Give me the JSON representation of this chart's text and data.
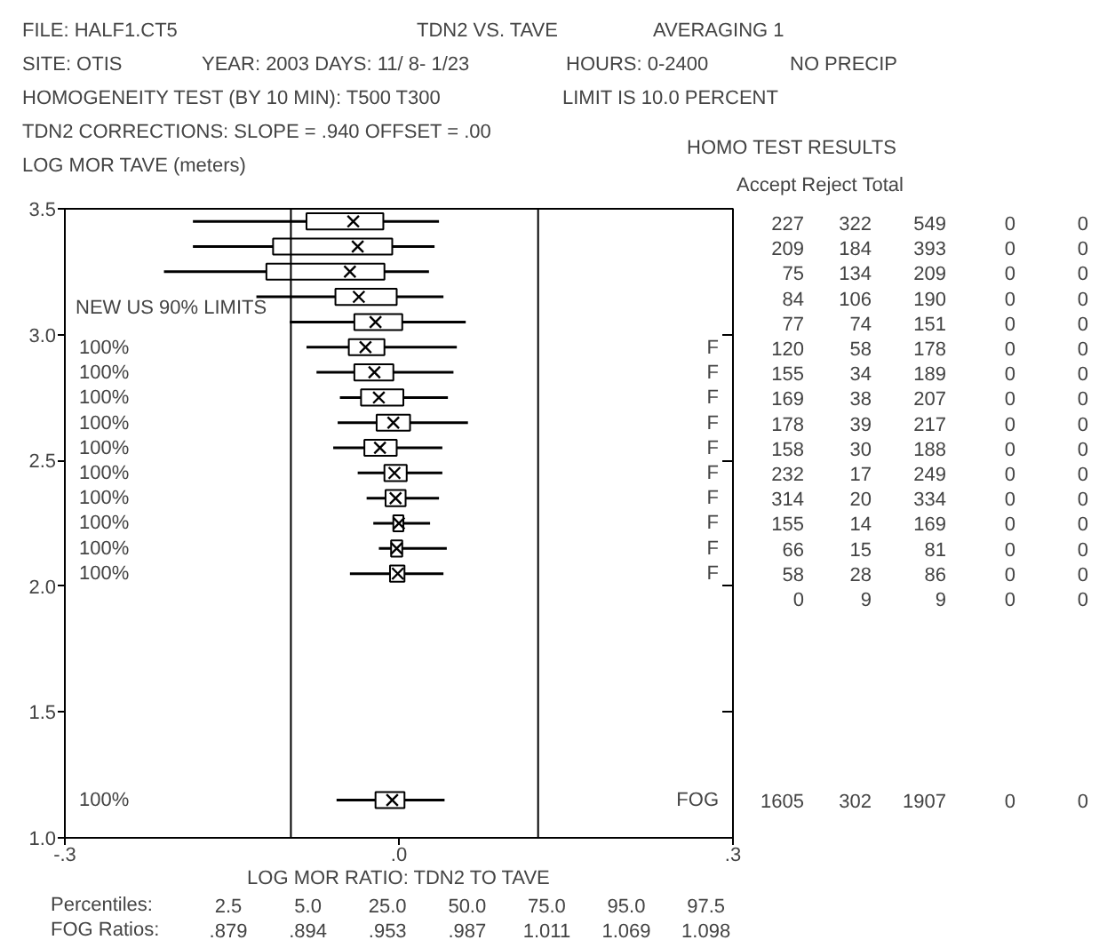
{
  "chart_data": {
    "type": "box",
    "orientation": "horizontal",
    "title": "TDN2 VS. TAVE",
    "xlabel": "LOG MOR RATIO: TDN2 TO TAVE",
    "ylabel": "LOG MOR TAVE (meters)",
    "xlim": [
      -0.3,
      0.3
    ],
    "ylim": [
      1.0,
      3.5
    ],
    "xticks": [
      {
        "value": -0.3,
        "label": "-.3"
      },
      {
        "value": 0,
        "label": ".0"
      },
      {
        "value": 0.3,
        "label": ".3"
      }
    ],
    "yticks": [
      {
        "value": 1.0,
        "label": "1.0"
      },
      {
        "value": 1.5,
        "label": "1.5"
      },
      {
        "value": 2.0,
        "label": "2.0"
      },
      {
        "value": 2.5,
        "label": "2.5"
      },
      {
        "value": 3.0,
        "label": "3.0"
      },
      {
        "value": 3.5,
        "label": "3.5"
      }
    ],
    "x": [
      3.45,
      3.35,
      3.25,
      3.15,
      3.05,
      2.95,
      2.85,
      2.75,
      2.65,
      2.55,
      2.45,
      2.35,
      2.25,
      2.15,
      2.05,
      1.15
    ],
    "boxes": [
      {
        "low": -0.185,
        "q1": -0.083,
        "median": -0.041,
        "q3": -0.014,
        "high": 0.036
      },
      {
        "low": -0.185,
        "q1": -0.113,
        "median": -0.037,
        "q3": -0.006,
        "high": 0.032
      },
      {
        "low": -0.211,
        "q1": -0.119,
        "median": -0.044,
        "q3": -0.013,
        "high": 0.027
      },
      {
        "low": -0.128,
        "q1": -0.057,
        "median": -0.036,
        "q3": -0.002,
        "high": 0.04
      },
      {
        "low": -0.098,
        "q1": -0.04,
        "median": -0.021,
        "q3": 0.003,
        "high": 0.06
      },
      {
        "low": -0.083,
        "q1": -0.045,
        "median": -0.03,
        "q3": -0.013,
        "high": 0.052
      },
      {
        "low": -0.074,
        "q1": -0.04,
        "median": -0.022,
        "q3": -0.005,
        "high": 0.049
      },
      {
        "low": -0.053,
        "q1": -0.034,
        "median": -0.018,
        "q3": 0.004,
        "high": 0.044
      },
      {
        "low": -0.055,
        "q1": -0.02,
        "median": -0.005,
        "q3": 0.01,
        "high": 0.062
      },
      {
        "low": -0.059,
        "q1": -0.031,
        "median": -0.017,
        "q3": -0.002,
        "high": 0.039
      },
      {
        "low": -0.037,
        "q1": -0.013,
        "median": -0.004,
        "q3": 0.007,
        "high": 0.039
      },
      {
        "low": -0.029,
        "q1": -0.012,
        "median": -0.003,
        "q3": 0.006,
        "high": 0.036
      },
      {
        "low": -0.023,
        "q1": -0.005,
        "median": 0.0,
        "q3": 0.004,
        "high": 0.028
      },
      {
        "low": -0.018,
        "q1": -0.007,
        "median": -0.002,
        "q3": 0.003,
        "high": 0.043
      },
      {
        "low": -0.044,
        "q1": -0.008,
        "median": -0.001,
        "q3": 0.005,
        "high": 0.04
      },
      {
        "low": -0.056,
        "q1": -0.021,
        "median": -0.006,
        "q3": 0.005,
        "high": 0.041
      }
    ],
    "ref_lines": [
      {
        "axis": "x",
        "value": -0.097,
        "label": "NEW US 90% LIMITS"
      },
      {
        "axis": "x",
        "value": 0.125
      }
    ],
    "annotations": [
      "FILE: HALF1.CT5",
      "AVERAGING  1",
      "SITE: OTIS",
      "YEAR: 2003  DAYS: 11/ 8- 1/23",
      "HOURS:  0-2400",
      "NO PRECIP",
      "HOMOGENEITY TEST (BY 10 MIN): T500 T300",
      "LIMIT IS  10.0 PERCENT",
      "TDN2 CORRECTIONS:  SLOPE =  .940  OFFSET =  .00",
      "HOMO TEST RESULTS",
      "Accept Reject  Total",
      "Percentiles:  2.5  5.0  25.0  50.0  75.0  95.0  97.5",
      "FOG Ratios:  .879  .894  .953  .987  1.011  1.069  1.098",
      "100%",
      "100%",
      "100%",
      "100%",
      "100%",
      "100%",
      "100%",
      "100%",
      "100%",
      "100%",
      "100%",
      "F",
      "F",
      "F",
      "F",
      "F",
      "F",
      "F",
      "F",
      "F",
      "F",
      "FOG",
      "227  322  549  0  0",
      "209  184  393  0  0",
      "75  134  209  0  0",
      "84  106  190  0  0",
      "77  74  151  0  0",
      "120  58  178  0  0",
      "155  34  189  0  0",
      "169  38  207  0  0",
      "178  39  217  0  0",
      "158  30  188  0  0",
      "232  17  249  0  0",
      "314  20  334  0  0",
      "155  14  169  0  0",
      "66  15  81  0  0",
      "58  28  86  0  0",
      "0  9  9  0  0",
      "1605  302  1907  0  0"
    ]
  }
}
